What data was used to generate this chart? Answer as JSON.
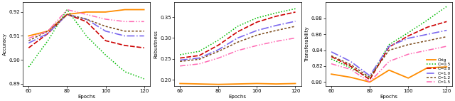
{
  "epochs": [
    60,
    70,
    80,
    90,
    100,
    110,
    120
  ],
  "acc_orig": [
    0.91,
    0.912,
    0.919,
    0.92,
    0.92,
    0.921,
    0.921
  ],
  "acc_c05": [
    0.897,
    0.908,
    0.921,
    0.91,
    0.902,
    0.895,
    0.892
  ],
  "acc_c08": [
    0.905,
    0.911,
    0.919,
    0.916,
    0.908,
    0.906,
    0.905
  ],
  "acc_c10": [
    0.907,
    0.911,
    0.919,
    0.917,
    0.912,
    0.91,
    0.91
  ],
  "acc_c12": [
    0.908,
    0.912,
    0.919,
    0.917,
    0.914,
    0.912,
    0.912
  ],
  "acc_c15": [
    0.909,
    0.912,
    0.921,
    0.919,
    0.917,
    0.916,
    0.916
  ],
  "rob_orig": [
    0.191,
    0.19,
    0.189,
    0.19,
    0.191,
    0.19,
    0.191
  ],
  "rob_c05": [
    0.26,
    0.268,
    0.295,
    0.328,
    0.348,
    0.36,
    0.37
  ],
  "rob_c08": [
    0.252,
    0.258,
    0.283,
    0.315,
    0.338,
    0.352,
    0.362
  ],
  "rob_c10": [
    0.247,
    0.252,
    0.272,
    0.3,
    0.318,
    0.33,
    0.34
  ],
  "rob_c12": [
    0.244,
    0.249,
    0.268,
    0.29,
    0.307,
    0.318,
    0.328
  ],
  "rob_c15": [
    0.233,
    0.238,
    0.252,
    0.27,
    0.282,
    0.292,
    0.3
  ],
  "tra_orig": [
    0.81,
    0.806,
    0.8,
    0.815,
    0.805,
    0.818,
    0.819
  ],
  "tra_c05": [
    0.829,
    0.818,
    0.805,
    0.847,
    0.862,
    0.878,
    0.895
  ],
  "tra_c08": [
    0.832,
    0.82,
    0.803,
    0.844,
    0.858,
    0.869,
    0.876
  ],
  "tra_c10": [
    0.838,
    0.826,
    0.808,
    0.845,
    0.855,
    0.86,
    0.865
  ],
  "tra_c12": [
    0.833,
    0.822,
    0.806,
    0.84,
    0.847,
    0.852,
    0.857
  ],
  "tra_c15": [
    0.823,
    0.816,
    0.8,
    0.826,
    0.835,
    0.84,
    0.845
  ],
  "color_orig": "#FF8C00",
  "color_c05": "#00BB00",
  "color_c08": "#CC0000",
  "color_c10": "#7B68EE",
  "color_c12": "#7B4A1A",
  "color_c15": "#FF69B4",
  "legend_labels": [
    "Orig",
    "C=0.5",
    "C=0.8",
    "C=1.0",
    "C=1.2",
    "C=1.5"
  ],
  "acc_ylim": [
    0.889,
    0.924
  ],
  "rob_ylim": [
    0.185,
    0.385
  ],
  "tra_ylim": [
    0.795,
    0.9
  ],
  "acc_yticks": [
    0.89,
    0.9,
    0.91,
    0.92
  ],
  "rob_yticks": [
    0.2,
    0.25,
    0.3,
    0.35
  ],
  "tra_yticks": [
    0.8,
    0.82,
    0.84,
    0.86,
    0.88
  ],
  "xlabel": "Epochs",
  "ylabel_acc": "Accuracy",
  "ylabel_rob": "Robustness",
  "ylabel_tra": "Transferability"
}
